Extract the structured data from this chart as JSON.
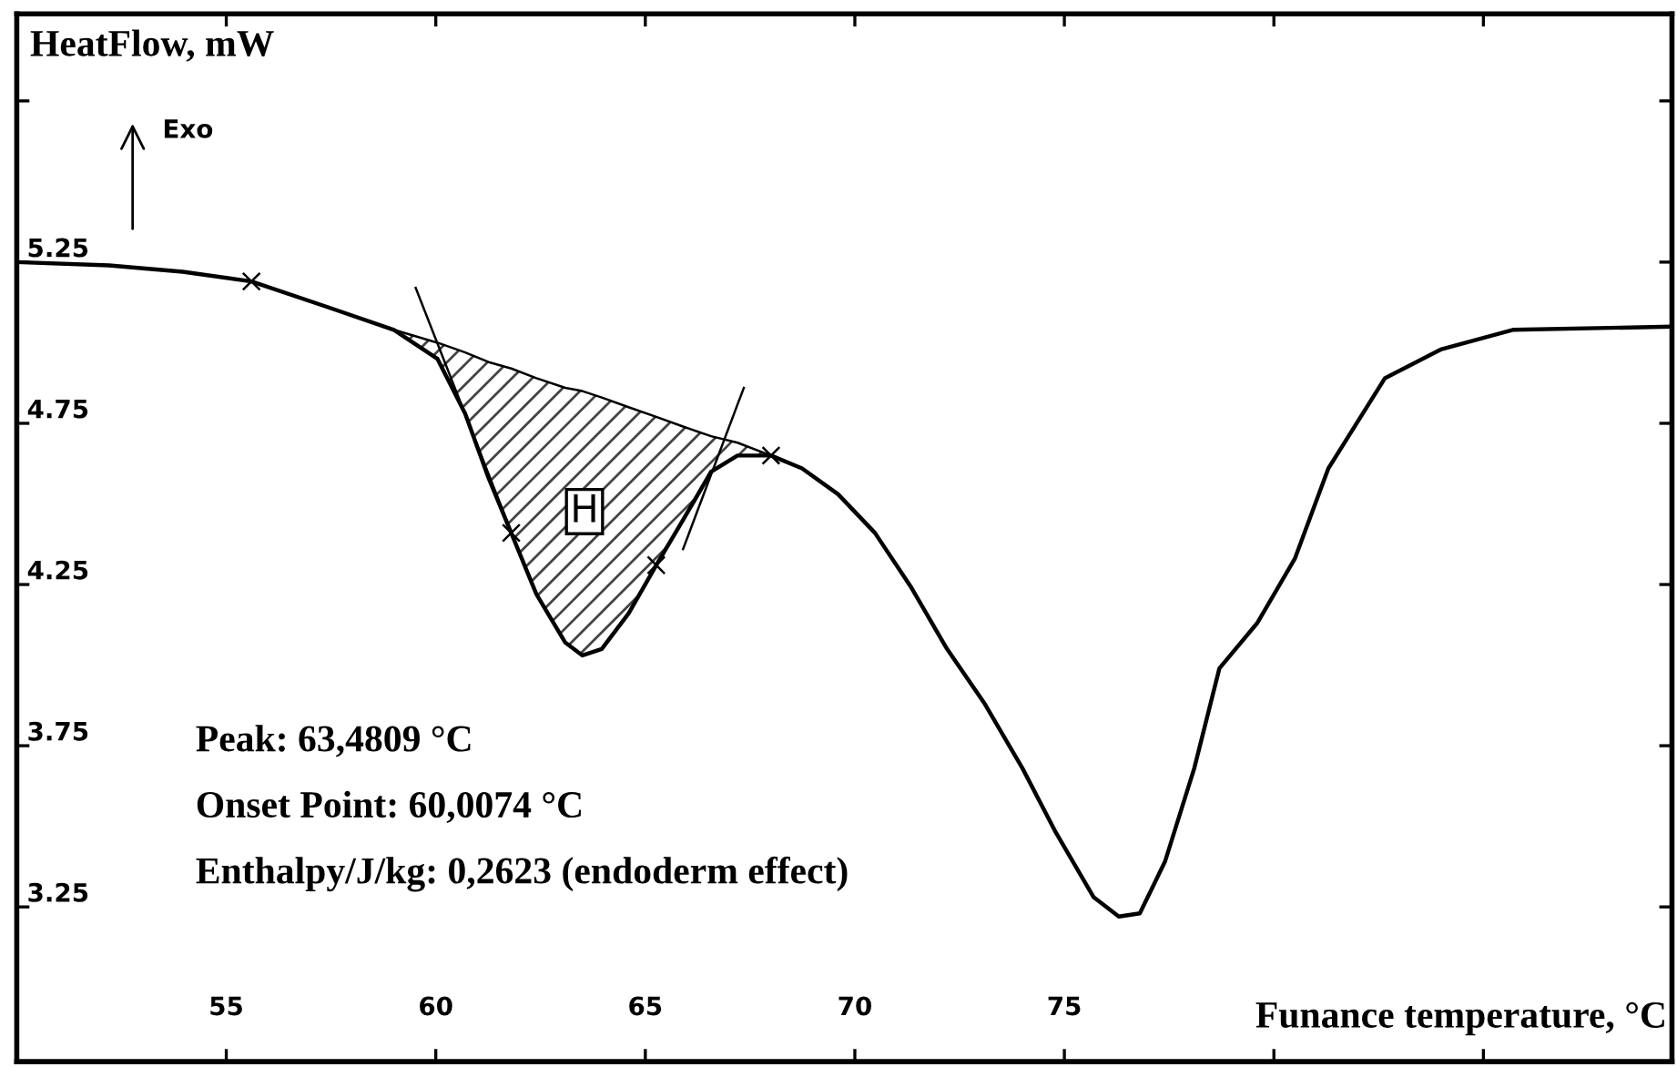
{
  "chart_data": {
    "type": "line",
    "xlabel": "Funance temperature, °C",
    "ylabel": "HeatFlow, mW",
    "annotations": [
      "Exo",
      "H",
      "Peak: 63,4809 °C",
      "Onset Point: 60,0074 °C",
      "Enthalpy/J/kg: 0,2623 (endoderm effect)"
    ],
    "xlim": [
      50,
      89.5
    ],
    "ylim": [
      2.77,
      6.02
    ],
    "xticks": [
      55,
      60,
      65,
      70,
      75,
      {
        "value": 80,
        "label": null
      },
      {
        "value": 85,
        "label": null
      }
    ],
    "yticks": [
      3.25,
      3.75,
      4.25,
      4.75,
      5.25,
      {
        "value": 5.75,
        "label": null
      }
    ],
    "grid": false,
    "legend": false,
    "line_style": "solid",
    "marker": "none",
    "series": [
      {
        "color": "#000000",
        "x": [
          50,
          52.2,
          53.96,
          55.6,
          57.43,
          59.0,
          60.04,
          60.7,
          61.26,
          61.8,
          62.4,
          63.09,
          63.5,
          63.96,
          64.6,
          65.26,
          65.9,
          66.57,
          67.2,
          68.0,
          68.74,
          69.6,
          70.48,
          71.35,
          72.2,
          73.1,
          74.0,
          74.8,
          75.7,
          76.3,
          76.8,
          77.4,
          78.1,
          78.7,
          79.6,
          80.5,
          81.3,
          82.65,
          84.0,
          85.7,
          89.5
        ],
        "values": [
          5.25,
          5.24,
          5.22,
          5.19,
          5.11,
          5.04,
          4.95,
          4.78,
          4.58,
          4.41,
          4.22,
          4.07,
          4.03,
          4.05,
          4.16,
          4.31,
          4.45,
          4.6,
          4.65,
          4.65,
          4.61,
          4.53,
          4.41,
          4.24,
          4.05,
          3.88,
          3.68,
          3.48,
          3.28,
          3.22,
          3.23,
          3.39,
          3.68,
          3.99,
          4.13,
          4.33,
          4.61,
          4.89,
          4.98,
          5.04,
          5.05
        ]
      },
      {
        "color": "#000000",
        "x": [
          55.6,
          59.0,
          60.04,
          60.7,
          61.26,
          61.8,
          62.4,
          63.09,
          63.5,
          63.96,
          64.6,
          65.26,
          65.9,
          66.57,
          67.2,
          68.0
        ],
        "values": [
          5.19,
          5.04,
          5.0,
          4.97,
          4.94,
          4.92,
          4.89,
          4.86,
          4.85,
          4.83,
          4.8,
          4.77,
          4.74,
          4.71,
          4.69,
          4.65
        ],
        "lower": [
          5.19,
          5.04,
          4.95,
          4.78,
          4.58,
          4.41,
          4.22,
          4.07,
          4.03,
          4.05,
          4.16,
          4.31,
          4.45,
          4.6,
          4.65,
          4.65
        ],
        "upper": [
          5.19,
          5.04,
          5.0,
          4.97,
          4.94,
          4.92,
          4.89,
          4.86,
          4.85,
          4.83,
          4.8,
          4.77,
          4.74,
          4.71,
          4.69,
          4.65
        ]
      },
      {
        "color": "#000000",
        "x": [
          59.52,
          61.87
        ],
        "values": [
          5.17,
          4.39
        ]
      },
      {
        "color": "#000000",
        "x": [
          65.9,
          67.35
        ],
        "values": [
          4.36,
          4.86
        ]
      },
      {
        "type": "scatter",
        "color": "#000000",
        "marker": "cross",
        "x": [
          55.6,
          61.8,
          65.26,
          68.0
        ],
        "values": [
          5.19,
          4.41,
          4.31,
          4.65
        ]
      }
    ]
  }
}
